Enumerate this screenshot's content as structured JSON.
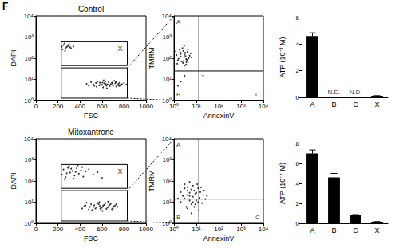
{
  "figure_label": "F",
  "chart_data": [
    {
      "type": "scatter",
      "title": "Control",
      "x_label": "FSC",
      "y_label": "DAPI",
      "color": "#000000",
      "grid": false,
      "log": "y",
      "xlim": [
        0,
        1000
      ],
      "xticks": [
        0,
        200,
        400,
        600,
        800,
        1000
      ],
      "ylim": [
        1,
        10000
      ],
      "yticks": [
        {
          "value": 1,
          "label": "10⁰"
        },
        {
          "value": 10,
          "label": "10¹"
        },
        {
          "value": 100,
          "label": "10²"
        },
        {
          "value": 1000,
          "label": "10³"
        },
        {
          "value": 10000,
          "label": "10⁴"
        }
      ],
      "gates": [
        {
          "label": "X",
          "x": [
            230,
            830
          ],
          "y": [
            45,
            600
          ]
        },
        {
          "x": [
            230,
            830
          ],
          "y": [
            1.3,
            35
          ]
        }
      ],
      "points": [
        [
          480,
          5
        ],
        [
          520,
          6
        ],
        [
          550,
          4.5
        ],
        [
          580,
          7
        ],
        [
          600,
          5.5
        ],
        [
          620,
          6.5
        ],
        [
          640,
          5
        ],
        [
          660,
          7.5
        ],
        [
          680,
          6
        ],
        [
          700,
          5
        ],
        [
          720,
          6.5
        ],
        [
          740,
          5.5
        ],
        [
          760,
          7
        ],
        [
          780,
          6
        ],
        [
          500,
          7.5
        ],
        [
          530,
          5
        ],
        [
          560,
          8
        ],
        [
          590,
          6
        ],
        [
          610,
          4.2
        ],
        [
          630,
          7.8
        ],
        [
          650,
          5.8
        ],
        [
          670,
          4.8
        ],
        [
          690,
          7
        ],
        [
          710,
          8.5
        ],
        [
          730,
          4.6
        ],
        [
          750,
          6.2
        ],
        [
          770,
          5.2
        ],
        [
          800,
          6.8
        ],
        [
          820,
          5.6
        ],
        [
          460,
          6.2
        ],
        [
          545,
          6.8
        ],
        [
          575,
          5.2
        ],
        [
          605,
          7.2
        ],
        [
          635,
          6
        ],
        [
          665,
          5.4
        ],
        [
          695,
          6.4
        ],
        [
          725,
          7.4
        ],
        [
          755,
          4.9
        ],
        [
          615,
          9
        ],
        [
          645,
          3.8
        ],
        [
          235,
          350
        ],
        [
          250,
          420
        ],
        [
          270,
          300
        ],
        [
          290,
          380
        ],
        [
          310,
          330
        ],
        [
          240,
          260
        ],
        [
          260,
          500
        ],
        [
          280,
          340
        ],
        [
          300,
          450
        ],
        [
          320,
          290
        ],
        [
          340,
          360
        ],
        [
          265,
          220
        ]
      ]
    },
    {
      "type": "scatter",
      "x_label": "AnnexinV",
      "y_label": "TMRM",
      "color": "#000000",
      "grid": false,
      "log": true,
      "xlim": [
        1,
        10000
      ],
      "xticks": [
        {
          "value": 1,
          "label": "10⁰"
        },
        {
          "value": 10,
          "label": "10¹"
        },
        {
          "value": 100,
          "label": "10²"
        },
        {
          "value": 1000,
          "label": "10³"
        },
        {
          "value": 10000,
          "label": "10⁴"
        }
      ],
      "ylim": [
        1,
        10000
      ],
      "yticks": [
        {
          "value": 1,
          "label": "10⁰"
        },
        {
          "value": 10,
          "label": "10¹"
        },
        {
          "value": 100,
          "label": "10²"
        },
        {
          "value": 1000,
          "label": "10³"
        },
        {
          "value": 10000,
          "label": "10⁴"
        }
      ],
      "quadrants": {
        "x": 13,
        "y": 25,
        "labels": [
          "A",
          "B",
          "C"
        ]
      },
      "points": [
        [
          1.5,
          80
        ],
        [
          2,
          120
        ],
        [
          2.5,
          60
        ],
        [
          3,
          150
        ],
        [
          3.5,
          90
        ],
        [
          4,
          200
        ],
        [
          1.8,
          250
        ],
        [
          2.2,
          70
        ],
        [
          2.8,
          110
        ],
        [
          3.2,
          180
        ],
        [
          1.3,
          140
        ],
        [
          4.5,
          100
        ],
        [
          5,
          130
        ],
        [
          2.4,
          300
        ],
        [
          3.6,
          65
        ],
        [
          1.6,
          95
        ],
        [
          2.6,
          220
        ],
        [
          3.8,
          85
        ],
        [
          2,
          160
        ],
        [
          3,
          45
        ],
        [
          4.2,
          260
        ],
        [
          1.4,
          55
        ],
        [
          5.5,
          170
        ],
        [
          2.9,
          400
        ],
        [
          3.3,
          125
        ],
        [
          1.9,
          190
        ],
        [
          2.7,
          75
        ],
        [
          6,
          110
        ],
        [
          1.2,
          210
        ],
        [
          3.5,
          50
        ],
        [
          2,
          8
        ],
        [
          3,
          15
        ],
        [
          1.5,
          5
        ],
        [
          20,
          15
        ]
      ]
    },
    {
      "type": "bar",
      "y_label": "ATP (10⁻³ M)",
      "color": "#000000",
      "grid": false,
      "categories": [
        "A",
        "B",
        "C",
        "X"
      ],
      "values": [
        4.6,
        null,
        null,
        0.1
      ],
      "errors": [
        0.25,
        null,
        null,
        0.03
      ],
      "ylim": [
        0,
        6
      ],
      "yticks": [
        0,
        2,
        4,
        6
      ],
      "annotations": [
        {
          "category": "B",
          "text": "N.D."
        },
        {
          "category": "C",
          "text": "N.D."
        }
      ]
    },
    {
      "type": "scatter",
      "title": "Mitoxantrone",
      "x_label": "FSC",
      "y_label": "DAPI",
      "color": "#000000",
      "grid": false,
      "log": "y",
      "xlim": [
        0,
        1000
      ],
      "xticks": [
        0,
        200,
        400,
        600,
        800,
        1000
      ],
      "ylim": [
        1,
        10000
      ],
      "yticks": [
        {
          "value": 1,
          "label": "10⁰"
        },
        {
          "value": 10,
          "label": "10¹"
        },
        {
          "value": 100,
          "label": "10²"
        },
        {
          "value": 1000,
          "label": "10³"
        },
        {
          "value": 10000,
          "label": "10⁴"
        }
      ],
      "gates": [
        {
          "label": "X",
          "x": [
            230,
            830
          ],
          "y": [
            45,
            600
          ]
        },
        {
          "x": [
            230,
            830
          ],
          "y": [
            1.3,
            35
          ]
        }
      ],
      "points": [
        [
          420,
          5
        ],
        [
          450,
          7
        ],
        [
          480,
          4.5
        ],
        [
          500,
          8
        ],
        [
          520,
          6
        ],
        [
          540,
          5
        ],
        [
          560,
          9
        ],
        [
          580,
          6.5
        ],
        [
          600,
          5.5
        ],
        [
          620,
          7.5
        ],
        [
          640,
          4.8
        ],
        [
          660,
          6.2
        ],
        [
          680,
          8.5
        ],
        [
          700,
          5.2
        ],
        [
          720,
          7
        ],
        [
          740,
          6
        ],
        [
          460,
          9.5
        ],
        [
          490,
          6
        ],
        [
          510,
          4.2
        ],
        [
          530,
          7.2
        ],
        [
          550,
          5.8
        ],
        [
          570,
          8
        ],
        [
          590,
          4.4
        ],
        [
          610,
          6.8
        ],
        [
          630,
          9
        ],
        [
          650,
          5.6
        ],
        [
          670,
          7.4
        ],
        [
          690,
          4.6
        ],
        [
          710,
          6.4
        ],
        [
          730,
          8.2
        ],
        [
          440,
          6.6
        ],
        [
          575,
          10
        ],
        [
          605,
          3.8
        ],
        [
          655,
          10.5
        ],
        [
          585,
          5
        ],
        [
          235,
          200
        ],
        [
          250,
          350
        ],
        [
          270,
          150
        ],
        [
          290,
          420
        ],
        [
          310,
          250
        ],
        [
          330,
          300
        ],
        [
          350,
          180
        ],
        [
          370,
          400
        ],
        [
          390,
          220
        ],
        [
          410,
          320
        ],
        [
          430,
          160
        ],
        [
          450,
          280
        ],
        [
          480,
          360
        ],
        [
          520,
          200
        ],
        [
          560,
          260
        ],
        [
          600,
          140
        ],
        [
          260,
          120
        ],
        [
          300,
          500
        ],
        [
          340,
          130
        ],
        [
          380,
          550
        ],
        [
          420,
          450
        ],
        [
          280,
          230
        ],
        [
          320,
          380
        ],
        [
          360,
          270
        ]
      ]
    },
    {
      "type": "scatter",
      "x_label": "AnnexinV",
      "y_label": "TMRM",
      "color": "#000000",
      "grid": false,
      "log": true,
      "xlim": [
        1,
        10000
      ],
      "xticks": [
        {
          "value": 1,
          "label": "10⁰"
        },
        {
          "value": 10,
          "label": "10¹"
        },
        {
          "value": 100,
          "label": "10²"
        },
        {
          "value": 1000,
          "label": "10³"
        },
        {
          "value": 10000,
          "label": "10⁴"
        }
      ],
      "ylim": [
        1,
        10000
      ],
      "yticks": [
        {
          "value": 1,
          "label": "10⁰"
        },
        {
          "value": 10,
          "label": "10¹"
        },
        {
          "value": 100,
          "label": "10²"
        },
        {
          "value": 1000,
          "label": "10³"
        },
        {
          "value": 10000,
          "label": "10⁴"
        }
      ],
      "quadrants": {
        "x": 13,
        "y": 14,
        "labels": [
          "A",
          "B",
          "C"
        ]
      },
      "points": [
        [
          2,
          30
        ],
        [
          3,
          15
        ],
        [
          4,
          50
        ],
        [
          5,
          20
        ],
        [
          6,
          8
        ],
        [
          8,
          35
        ],
        [
          10,
          12
        ],
        [
          3,
          70
        ],
        [
          4,
          5
        ],
        [
          6,
          40
        ],
        [
          7,
          18
        ],
        [
          9,
          25
        ],
        [
          12,
          10
        ],
        [
          15,
          30
        ],
        [
          5,
          90
        ],
        [
          2,
          10
        ],
        [
          3,
          45
        ],
        [
          4,
          22
        ],
        [
          5,
          12
        ],
        [
          7,
          60
        ],
        [
          8,
          6
        ],
        [
          10,
          28
        ],
        [
          12,
          45
        ],
        [
          14,
          16
        ],
        [
          18,
          9
        ],
        [
          20,
          22
        ],
        [
          25,
          14
        ],
        [
          6,
          3
        ],
        [
          4,
          35
        ],
        [
          9,
          8
        ],
        [
          2.5,
          20
        ],
        [
          3.5,
          6
        ],
        [
          11,
          70
        ],
        [
          16,
          50
        ],
        [
          5,
          28
        ],
        [
          7,
          10
        ],
        [
          13,
          4
        ],
        [
          30,
          20
        ],
        [
          22,
          35
        ],
        [
          1.5,
          15
        ]
      ]
    },
    {
      "type": "bar",
      "y_label": "ATP (10⁻⁴ M)",
      "color": "#000000",
      "grid": false,
      "categories": [
        "A",
        "B",
        "C",
        "X"
      ],
      "values": [
        7.0,
        4.6,
        0.8,
        0.15
      ],
      "errors": [
        0.35,
        0.4,
        0.08,
        0.03
      ],
      "ylim": [
        0,
        8
      ],
      "yticks": [
        0,
        2,
        4,
        6,
        8
      ]
    }
  ]
}
